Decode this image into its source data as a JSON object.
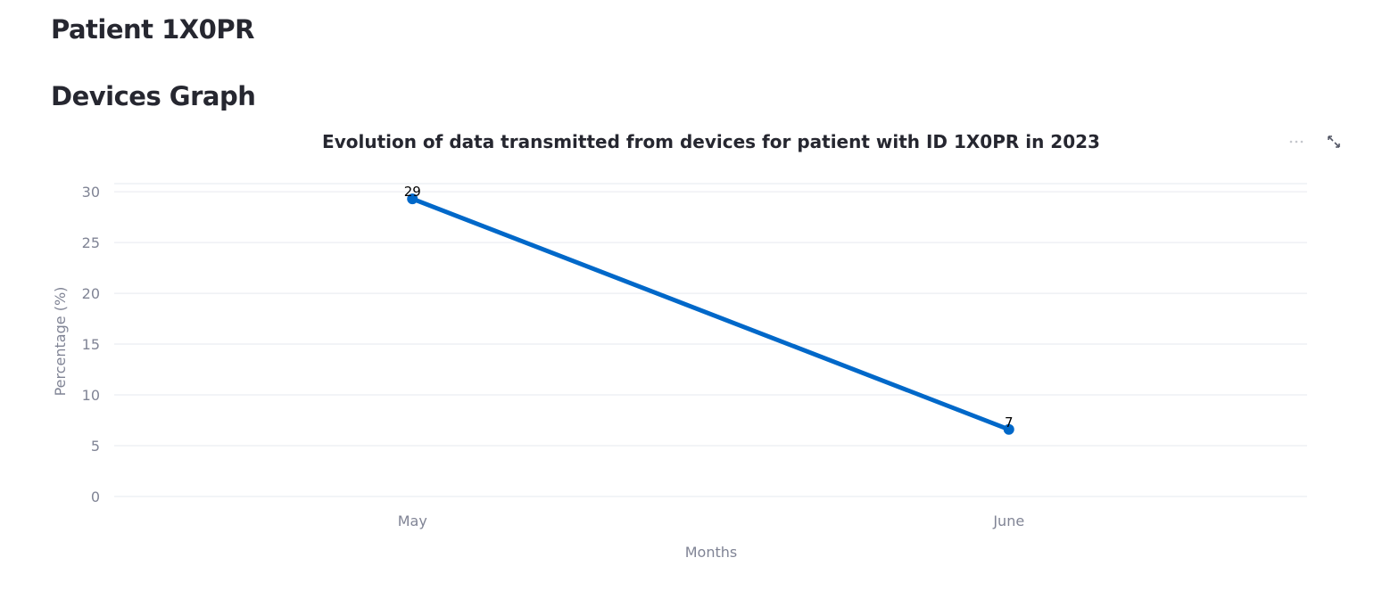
{
  "header": {
    "patient_title": "Patient 1X0PR",
    "section_title": "Devices Graph"
  },
  "toolbar": {
    "more_icon": "more-horizontal-icon",
    "fullscreen_icon": "expand-icon"
  },
  "colors": {
    "series": "#0068c9",
    "axis_text": "#808495",
    "grid": "#e6e9ef",
    "title": "#262730"
  },
  "chart_data": {
    "type": "line",
    "title": "Evolution of data transmitted from devices for patient with ID 1X0PR in 2023",
    "xlabel": "Months",
    "ylabel": "Percentage (%)",
    "categories": [
      "May",
      "June"
    ],
    "series": [
      {
        "values": [
          29.3,
          6.6
        ],
        "labels": [
          "29",
          "7"
        ]
      }
    ],
    "ylim": [
      0,
      30.8
    ],
    "yticks": [
      0,
      5,
      10,
      15,
      20,
      25,
      30
    ],
    "grid": true
  }
}
